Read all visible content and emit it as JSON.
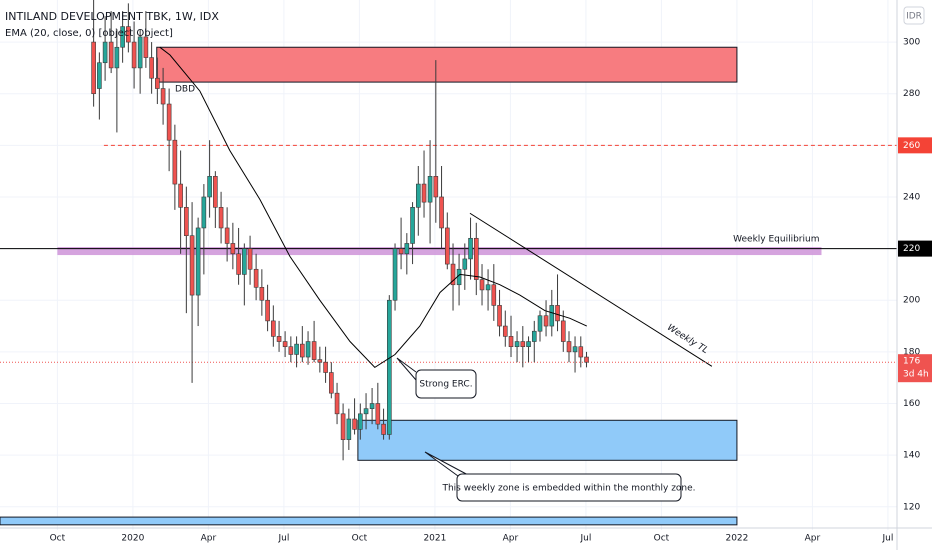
{
  "chart_data": {
    "type": "candlestick",
    "title": "INTILAND DEVELOPMENT TBK, 1W, IDX",
    "subtitle": "EMA (20, close, 0) [object Object]",
    "currency": "IDR",
    "up_color": "#26a69a",
    "down_color": "#ef5350",
    "xlim": [
      2019.56,
      2022.53
    ],
    "ylim": [
      111,
      316.3
    ],
    "grid": true,
    "yticks": [
      120,
      140,
      160,
      180,
      200,
      220,
      240,
      260,
      280,
      300
    ],
    "xticks": [
      {
        "value": 2019.75,
        "label": "Oct"
      },
      2020,
      {
        "value": 2020.25,
        "label": "Apr"
      },
      {
        "value": 2020.5,
        "label": "Jul"
      },
      {
        "value": 2020.75,
        "label": "Oct"
      },
      2021,
      {
        "value": 2021.25,
        "label": "Apr"
      },
      {
        "value": 2021.5,
        "label": "Jul"
      },
      {
        "value": 2021.75,
        "label": "Oct"
      },
      2022,
      {
        "value": 2022.25,
        "label": "Apr"
      },
      {
        "value": 2022.5,
        "label": "Jul"
      }
    ],
    "x": [
      2019.87,
      2019.889,
      2019.908,
      2019.928,
      2019.947,
      2019.966,
      2019.985,
      2020.004,
      2020.024,
      2020.043,
      2020.062,
      2020.081,
      2020.1,
      2020.12,
      2020.139,
      2020.158,
      2020.177,
      2020.196,
      2020.216,
      2020.235,
      2020.254,
      2020.273,
      2020.292,
      2020.312,
      2020.331,
      2020.35,
      2020.369,
      2020.388,
      2020.408,
      2020.427,
      2020.446,
      2020.465,
      2020.484,
      2020.504,
      2020.523,
      2020.542,
      2020.561,
      2020.58,
      2020.6,
      2020.619,
      2020.638,
      2020.657,
      2020.676,
      2020.696,
      2020.715,
      2020.734,
      2020.753,
      2020.772,
      2020.792,
      2020.811,
      2020.83,
      2020.849,
      2020.868,
      2020.888,
      2020.907,
      2020.926,
      2020.945,
      2020.964,
      2020.984,
      2021.003,
      2021.022,
      2021.041,
      2021.06,
      2021.08,
      2021.099,
      2021.118,
      2021.137,
      2021.156,
      2021.176,
      2021.195,
      2021.214,
      2021.233,
      2021.252,
      2021.272,
      2021.291,
      2021.31,
      2021.329,
      2021.348,
      2021.368,
      2021.387,
      2021.406,
      2021.425,
      2021.444,
      2021.464,
      2021.483,
      2021.502
    ],
    "ohlc": [
      [
        300,
        318,
        275,
        280
      ],
      [
        282,
        296,
        270,
        292
      ],
      [
        292,
        310,
        285,
        300
      ],
      [
        300,
        312,
        288,
        290
      ],
      [
        290,
        305,
        265,
        298
      ],
      [
        298,
        312,
        292,
        306
      ],
      [
        306,
        315,
        296,
        300
      ],
      [
        300,
        308,
        282,
        290
      ],
      [
        290,
        305,
        280,
        302
      ],
      [
        302,
        312,
        290,
        294
      ],
      [
        294,
        300,
        280,
        286
      ],
      [
        286,
        294,
        276,
        282
      ],
      [
        282,
        290,
        268,
        276
      ],
      [
        276,
        282,
        250,
        262
      ],
      [
        262,
        268,
        235,
        245
      ],
      [
        245,
        258,
        218,
        236
      ],
      [
        236,
        244,
        195,
        225
      ],
      [
        225,
        238,
        168,
        202
      ],
      [
        202,
        232,
        190,
        228
      ],
      [
        228,
        245,
        210,
        240
      ],
      [
        240,
        262,
        232,
        248
      ],
      [
        248,
        250,
        228,
        236
      ],
      [
        236,
        242,
        222,
        228
      ],
      [
        228,
        236,
        215,
        222
      ],
      [
        222,
        230,
        212,
        218
      ],
      [
        218,
        228,
        206,
        210
      ],
      [
        210,
        222,
        198,
        220
      ],
      [
        220,
        225,
        206,
        212
      ],
      [
        212,
        218,
        200,
        205
      ],
      [
        205,
        212,
        194,
        200
      ],
      [
        200,
        206,
        188,
        192
      ],
      [
        192,
        198,
        182,
        186
      ],
      [
        186,
        192,
        180,
        184
      ],
      [
        184,
        188,
        178,
        182
      ],
      [
        182,
        186,
        176,
        179
      ],
      [
        179,
        186,
        174,
        183
      ],
      [
        183,
        190,
        176,
        178
      ],
      [
        178,
        188,
        175,
        184
      ],
      [
        184,
        192,
        176,
        177
      ],
      [
        177,
        182,
        172,
        176
      ],
      [
        176,
        182,
        168,
        172
      ],
      [
        172,
        176,
        162,
        164
      ],
      [
        164,
        168,
        152,
        156
      ],
      [
        156,
        160,
        138,
        146
      ],
      [
        146,
        158,
        142,
        154
      ],
      [
        154,
        162,
        148,
        150
      ],
      [
        150,
        160,
        146,
        156
      ],
      [
        156,
        164,
        150,
        158
      ],
      [
        158,
        166,
        152,
        160
      ],
      [
        160,
        168,
        150,
        152
      ],
      [
        152,
        158,
        146,
        148
      ],
      [
        148,
        202,
        146,
        200
      ],
      [
        200,
        222,
        196,
        220
      ],
      [
        220,
        232,
        212,
        218
      ],
      [
        218,
        226,
        210,
        222
      ],
      [
        222,
        238,
        214,
        236
      ],
      [
        236,
        252,
        225,
        245
      ],
      [
        245,
        258,
        232,
        238
      ],
      [
        238,
        262,
        222,
        248
      ],
      [
        248,
        293,
        230,
        240
      ],
      [
        240,
        252,
        220,
        228
      ],
      [
        228,
        234,
        212,
        214
      ],
      [
        214,
        222,
        196,
        206
      ],
      [
        206,
        218,
        198,
        212
      ],
      [
        212,
        222,
        204,
        216
      ],
      [
        216,
        232,
        208,
        224
      ],
      [
        224,
        230,
        202,
        208
      ],
      [
        208,
        214,
        198,
        204
      ],
      [
        204,
        212,
        196,
        206
      ],
      [
        206,
        214,
        192,
        198
      ],
      [
        198,
        204,
        186,
        190
      ],
      [
        190,
        196,
        182,
        186
      ],
      [
        186,
        194,
        178,
        182
      ],
      [
        182,
        188,
        176,
        184
      ],
      [
        184,
        190,
        174,
        182
      ],
      [
        182,
        186,
        176,
        184
      ],
      [
        184,
        192,
        176,
        188
      ],
      [
        188,
        196,
        184,
        194
      ],
      [
        194,
        200,
        186,
        190
      ],
      [
        190,
        204,
        186,
        198
      ],
      [
        198,
        210,
        188,
        192
      ],
      [
        192,
        196,
        180,
        184
      ],
      [
        184,
        188,
        176,
        180
      ],
      [
        180,
        186,
        172,
        182
      ],
      [
        182,
        186,
        174,
        178
      ],
      [
        178,
        180,
        174,
        176
      ]
    ],
    "ema": {
      "color": "#000000",
      "x": [
        2020.089,
        2020.123,
        2020.222,
        2020.321,
        2020.421,
        2020.52,
        2020.619,
        2020.719,
        2020.801,
        2020.868,
        2020.95,
        2021.017,
        2021.083,
        2021.149,
        2021.215,
        2021.281,
        2021.364,
        2021.447,
        2021.503
      ],
      "values": [
        298,
        295,
        281,
        258,
        239,
        217,
        200,
        184,
        174,
        179,
        190,
        203,
        210,
        209,
        206,
        202,
        196,
        193,
        190
      ]
    },
    "zones": [
      {
        "x": [
          2020.079,
          2022.0
        ],
        "y": [
          284.5,
          298
        ],
        "color": "#f77c80"
      },
      {
        "x": [
          2020.745,
          2022.0
        ],
        "y": [
          138,
          153.5
        ],
        "color": "#90caf9"
      },
      {
        "x": [
          2019.56,
          2022.0
        ],
        "y": [
          113,
          116
        ],
        "color": "#90caf9"
      }
    ],
    "bands": [
      {
        "name": "Weekly Equilibrium",
        "x": [
          2019.75,
          2022.28
        ],
        "y": [
          217.5,
          220.6
        ],
        "color": "#ce93d8"
      }
    ],
    "hlines": [
      {
        "value": 260,
        "from": 2019.904,
        "color": "#f44336",
        "style": "dashed"
      },
      {
        "value": 220,
        "from": 2019.56,
        "color": "#000000",
        "style": "solid"
      }
    ],
    "last_price": {
      "value": 176,
      "countdown": "3d 4h",
      "color": "#ef5350"
    },
    "trendlines": [
      {
        "name": "Weekly TL",
        "x": [
          2021.116,
          2021.917
        ],
        "y": [
          233.7,
          174.4
        ],
        "color": "#000000"
      }
    ],
    "labels": [
      "DBD"
    ],
    "callouts": [
      "Strong ERC.",
      "This weekly zone is embedded within the monthly zone."
    ]
  }
}
